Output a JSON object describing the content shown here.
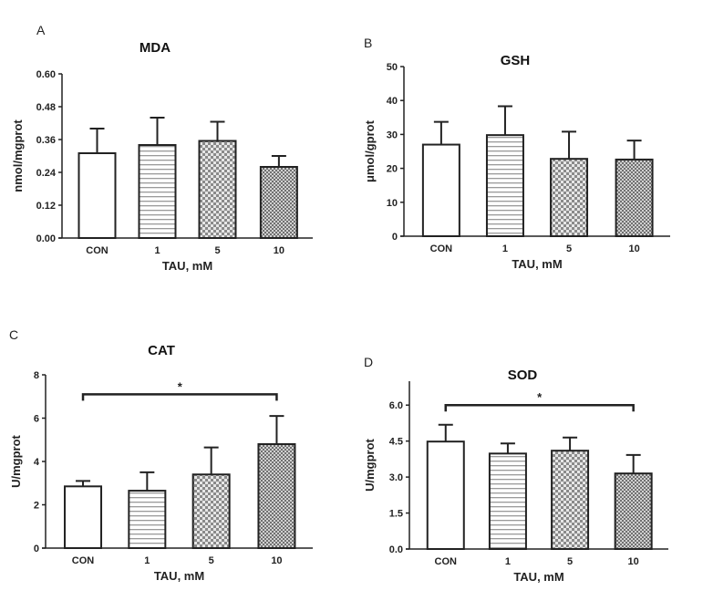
{
  "chart_data": [
    {
      "type": "bar",
      "panel": "A",
      "title": "MDA",
      "xlabel": "TAU, mM",
      "ylabel": "nmol/mgprot",
      "categories": [
        "CON",
        "1",
        "5",
        "10"
      ],
      "values": [
        0.31,
        0.34,
        0.355,
        0.26
      ],
      "error_upper": [
        0.4,
        0.44,
        0.425,
        0.3
      ],
      "ylim": [
        0,
        0.6
      ],
      "yticks": [
        "0.00",
        "0.12",
        "0.24",
        "0.36",
        "0.48",
        "0.60"
      ],
      "ytick_values": [
        0,
        0.12,
        0.24,
        0.36,
        0.48,
        0.6
      ],
      "significance": []
    },
    {
      "type": "bar",
      "panel": "B",
      "title": "GSH",
      "xlabel": "TAU, mM",
      "ylabel": "μmol/gprot",
      "categories": [
        "CON",
        "1",
        "5",
        "10"
      ],
      "values": [
        27.0,
        29.8,
        22.8,
        22.6
      ],
      "error_upper": [
        33.7,
        38.3,
        30.8,
        28.2
      ],
      "ylim": [
        0,
        50
      ],
      "yticks": [
        "0",
        "10",
        "20",
        "30",
        "40",
        "50"
      ],
      "ytick_values": [
        0,
        10,
        20,
        30,
        40,
        50
      ],
      "significance": []
    },
    {
      "type": "bar",
      "panel": "C",
      "title": "CAT",
      "xlabel": "TAU, mM",
      "ylabel": "U/mgprot",
      "categories": [
        "CON",
        "1",
        "5",
        "10"
      ],
      "values": [
        2.85,
        2.65,
        3.4,
        4.8
      ],
      "error_upper": [
        3.1,
        3.5,
        4.65,
        6.1
      ],
      "ylim": [
        0,
        8
      ],
      "yticks": [
        "0",
        "2",
        "4",
        "6",
        "8"
      ],
      "ytick_values": [
        0,
        2,
        4,
        6,
        8
      ],
      "significance": [
        {
          "from": "CON",
          "to": "10",
          "label": "*",
          "y": 7.1
        }
      ]
    },
    {
      "type": "bar",
      "panel": "D",
      "title": "SOD",
      "xlabel": "TAU, mM",
      "ylabel": "U/mgprot",
      "categories": [
        "CON",
        "1",
        "5",
        "10"
      ],
      "values": [
        4.48,
        3.98,
        4.1,
        3.15
      ],
      "error_upper": [
        5.18,
        4.4,
        4.65,
        3.92
      ],
      "ylim": [
        0,
        7
      ],
      "yticks": [
        "0.0",
        "1.5",
        "3.0",
        "4.5",
        "6.0"
      ],
      "ytick_values": [
        0,
        1.5,
        3,
        4.5,
        6
      ],
      "significance": [
        {
          "from": "CON",
          "to": "10",
          "label": "*",
          "y": 6.0
        }
      ]
    }
  ],
  "colors": {
    "axis": "#222222",
    "bar_fill": "#ffffff",
    "pattern": "#8a8a8a"
  },
  "bar_patterns": [
    "none",
    "horizontal-lines",
    "checker",
    "fine-checker"
  ]
}
